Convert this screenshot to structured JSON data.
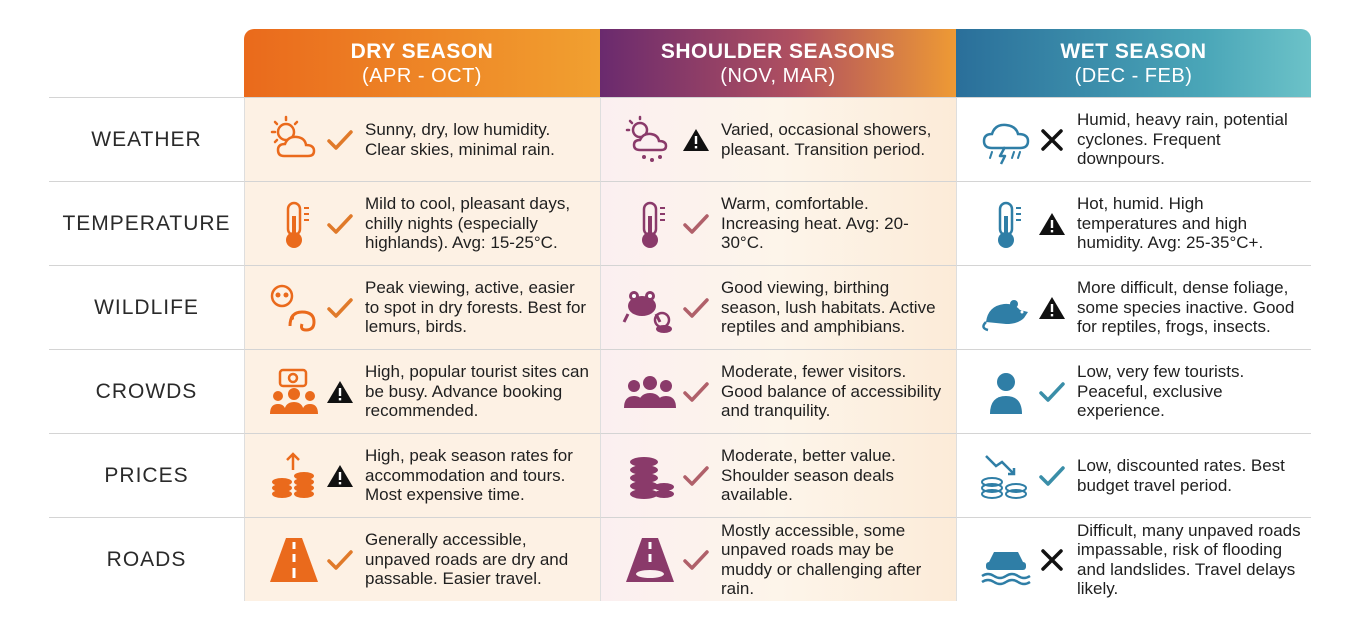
{
  "colors": {
    "dry": "#ea6a1c",
    "shoulder": "#8a3a6a",
    "wet": "#2f7ea6",
    "check_dry": "#e07a2a",
    "check_sh": "#b0606a",
    "check_wet": "#3a8ea8"
  },
  "headers": {
    "dry": {
      "title": "DRY SEASON",
      "months": "(APR - OCT)"
    },
    "shoulder": {
      "title": "SHOULDER SEASONS",
      "months": "(NOV, MAR)"
    },
    "wet": {
      "title": "WET SEASON",
      "months": "(DEC - FEB)"
    }
  },
  "rows": [
    {
      "label": "WEATHER",
      "dry": {
        "icon": "sun-cloud-icon",
        "mark": "check",
        "text": "Sunny, dry, low humidity. Clear skies, minimal rain."
      },
      "shoulder": {
        "icon": "sun-cloud-rain-icon",
        "mark": "warning",
        "text": "Varied, occasional showers, pleasant. Transition period."
      },
      "wet": {
        "icon": "storm-cloud-icon",
        "mark": "cross",
        "text": "Humid, heavy rain, potential cyclones. Frequent downpours."
      }
    },
    {
      "label": "TEMPERATURE",
      "dry": {
        "icon": "thermometer-icon",
        "mark": "check",
        "text": "Mild to cool, pleasant days, chilly nights (especially highlands). Avg: 15-25°C."
      },
      "shoulder": {
        "icon": "thermometer-icon",
        "mark": "check",
        "text": "Warm, comfortable. Increasing heat. Avg: 20-30°C."
      },
      "wet": {
        "icon": "thermometer-icon",
        "mark": "warning",
        "text": "Hot, humid. High temperatures and high humidity. Avg: 25-35°C+."
      }
    },
    {
      "label": "WILDLIFE",
      "dry": {
        "icon": "lemur-chameleon-icon",
        "mark": "check",
        "text": "Peak viewing, active, easier to spot in dry forests. Best for lemurs, birds."
      },
      "shoulder": {
        "icon": "frog-lemur-icon",
        "mark": "check",
        "text": "Good viewing, birthing season, lush habitats. Active reptiles and amphibians."
      },
      "wet": {
        "icon": "rat-icon",
        "mark": "warning",
        "text": "More difficult, dense foliage, some species inactive. Good for reptiles, frogs, insects."
      }
    },
    {
      "label": "CROWDS",
      "dry": {
        "icon": "camera-crowd-icon",
        "mark": "warning",
        "text": "High, popular tourist sites can be busy. Advance booking recommended."
      },
      "shoulder": {
        "icon": "group-icon",
        "mark": "check",
        "text": "Moderate, fewer visitors. Good balance of accessibility and tranquility."
      },
      "wet": {
        "icon": "person-icon",
        "mark": "check",
        "text": "Low, very few tourists. Peaceful, exclusive experience."
      }
    },
    {
      "label": "PRICES",
      "dry": {
        "icon": "coins-up-icon",
        "mark": "warning",
        "text": "High, peak season rates for accommodation and tours. Most expensive time."
      },
      "shoulder": {
        "icon": "coin-stack-icon",
        "mark": "check",
        "text": "Moderate, better value. Shoulder season deals available."
      },
      "wet": {
        "icon": "coins-down-icon",
        "mark": "check",
        "text": "Low, discounted rates. Best budget travel period."
      }
    },
    {
      "label": "ROADS",
      "dry": {
        "icon": "road-icon",
        "mark": "check",
        "text": "Generally accessible, unpaved roads are dry and passable. Easier travel."
      },
      "shoulder": {
        "icon": "muddy-road-icon",
        "mark": "check",
        "text": "Mostly accessible, some unpaved roads may be muddy or challenging after rain."
      },
      "wet": {
        "icon": "flooded-car-icon",
        "mark": "cross",
        "text": "Difficult, many unpaved roads impassable, risk of flooding and landslides. Travel delays likely."
      }
    }
  ]
}
